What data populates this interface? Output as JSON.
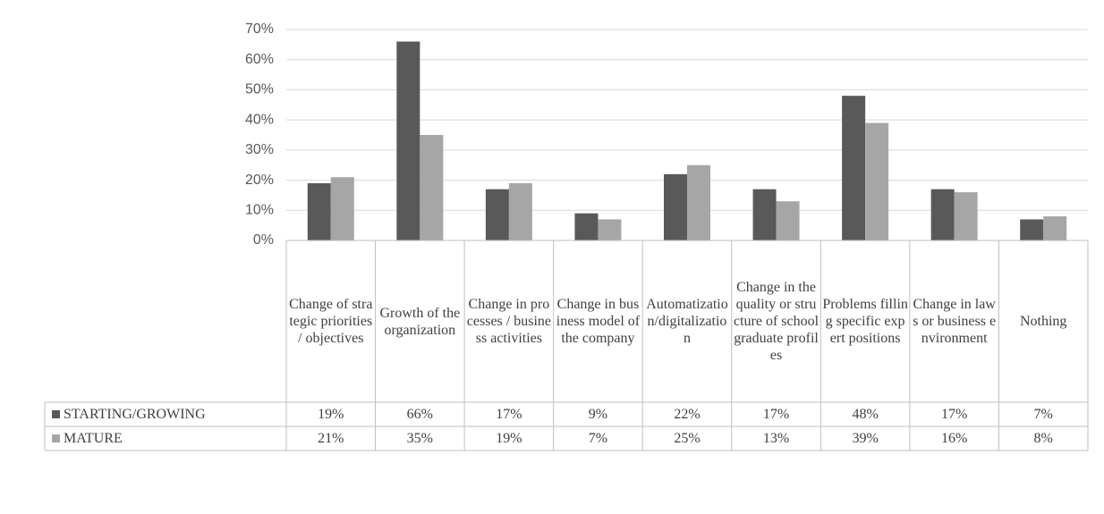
{
  "chart_data": {
    "type": "bar",
    "categories": [
      "Change of strategic priorities / objectives",
      "Growth of the organization",
      "Change in processes / business activities",
      "Change in business model of the company",
      "Automatization/digitalization",
      "Change in the quality or structure of school graduate profiles",
      "Problems filling specific expert positions",
      "Change in laws or business environment",
      "Nothing"
    ],
    "series": [
      {
        "name": "STARTING/GROWING",
        "color": "#595959",
        "values": [
          19,
          66,
          17,
          9,
          22,
          17,
          48,
          17,
          7
        ],
        "value_labels": [
          "19%",
          "66%",
          "17%",
          "9%",
          "22%",
          "17%",
          "48%",
          "17%",
          "7%"
        ]
      },
      {
        "name": "MATURE",
        "color": "#a6a6a6",
        "values": [
          21,
          35,
          19,
          7,
          25,
          13,
          39,
          16,
          8
        ],
        "value_labels": [
          "21%",
          "35%",
          "19%",
          "7%",
          "25%",
          "13%",
          "39%",
          "16%",
          "8%"
        ]
      }
    ],
    "ylim": [
      0,
      70
    ],
    "yticks": [
      {
        "value": 0,
        "label": "0%"
      },
      {
        "value": 10,
        "label": "10%"
      },
      {
        "value": 20,
        "label": "20%"
      },
      {
        "value": 30,
        "label": "30%"
      },
      {
        "value": 40,
        "label": "40%"
      },
      {
        "value": 50,
        "label": "50%"
      },
      {
        "value": 60,
        "label": "60%"
      },
      {
        "value": 70,
        "label": "70%"
      }
    ],
    "grid": true
  }
}
